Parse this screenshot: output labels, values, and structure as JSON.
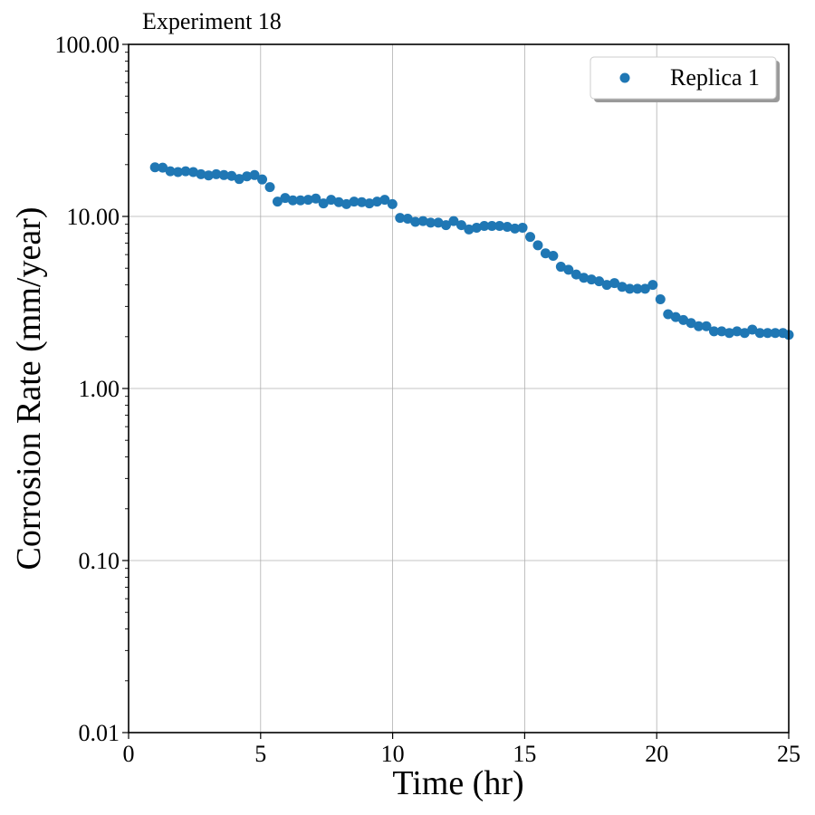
{
  "chart_data": {
    "type": "scatter",
    "title": "Experiment 18",
    "xlabel": "Time (hr)",
    "ylabel": "Corrosion Rate (mm/year)",
    "xlim": [
      0,
      25
    ],
    "ylim": [
      0.01,
      100
    ],
    "yscale": "log",
    "grid": true,
    "legend_position": "top-right",
    "x_ticks": [
      "0",
      "5",
      "10",
      "15",
      "20",
      "25"
    ],
    "y_ticks": [
      "0.01",
      "0.10",
      "1.00",
      "10.00",
      "100.00"
    ],
    "series": [
      {
        "name": "Replica 1",
        "color": "#1f77b4",
        "x": [
          1.0,
          1.29,
          1.58,
          1.87,
          2.16,
          2.45,
          2.74,
          3.03,
          3.32,
          3.61,
          3.9,
          4.19,
          4.48,
          4.77,
          5.06,
          5.35,
          5.64,
          5.93,
          6.22,
          6.51,
          6.8,
          7.09,
          7.38,
          7.67,
          7.96,
          8.25,
          8.54,
          8.83,
          9.12,
          9.41,
          9.7,
          9.99,
          10.28,
          10.57,
          10.86,
          11.15,
          11.44,
          11.73,
          12.02,
          12.31,
          12.6,
          12.89,
          13.18,
          13.47,
          13.76,
          14.05,
          14.34,
          14.63,
          14.92,
          15.21,
          15.5,
          15.79,
          16.08,
          16.37,
          16.66,
          16.95,
          17.24,
          17.53,
          17.82,
          18.11,
          18.4,
          18.69,
          18.98,
          19.27,
          19.56,
          19.85,
          20.14,
          20.43,
          20.72,
          21.01,
          21.3,
          21.59,
          21.88,
          22.17,
          22.46,
          22.75,
          23.04,
          23.33,
          23.62,
          23.91,
          24.2,
          24.49,
          24.78,
          25.0
        ],
        "y": [
          19.3,
          19.2,
          18.3,
          18.1,
          18.3,
          18.1,
          17.6,
          17.3,
          17.6,
          17.4,
          17.2,
          16.5,
          17.1,
          17.4,
          16.4,
          14.8,
          12.2,
          12.8,
          12.4,
          12.4,
          12.5,
          12.7,
          11.9,
          12.5,
          12.1,
          11.8,
          12.2,
          12.1,
          11.9,
          12.2,
          12.5,
          11.8,
          9.8,
          9.7,
          9.3,
          9.4,
          9.2,
          9.2,
          8.9,
          9.4,
          8.9,
          8.4,
          8.6,
          8.8,
          8.8,
          8.8,
          8.7,
          8.5,
          8.6,
          7.6,
          6.8,
          6.1,
          5.9,
          5.1,
          4.9,
          4.6,
          4.4,
          4.3,
          4.2,
          4.0,
          4.1,
          3.9,
          3.8,
          3.8,
          3.8,
          4.0,
          3.3,
          2.7,
          2.6,
          2.5,
          2.4,
          2.3,
          2.3,
          2.15,
          2.15,
          2.1,
          2.15,
          2.1,
          2.2,
          2.1,
          2.1,
          2.1,
          2.1,
          2.05
        ]
      }
    ]
  }
}
